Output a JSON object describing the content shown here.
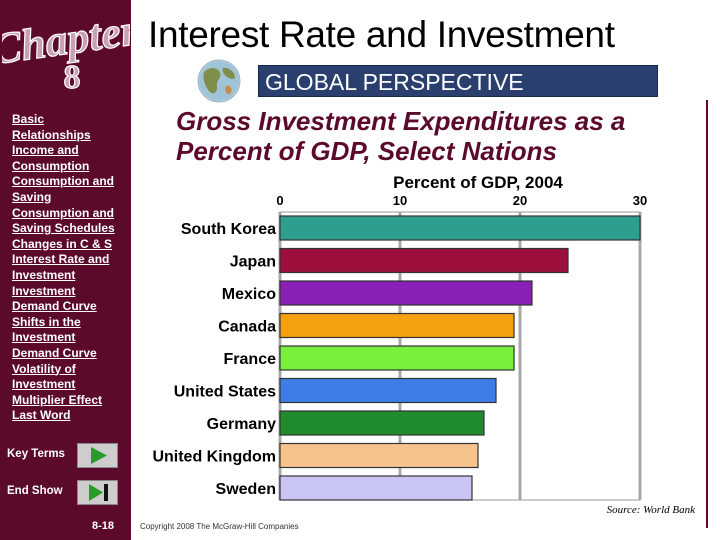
{
  "header": {
    "title": "Interest Rate and Investment",
    "banner": "GLOBAL PERSPECTIVE",
    "subtitle": "Gross Investment Expenditures as a Percent of GDP, Select Nations"
  },
  "sidebar": {
    "logo": {
      "word": "Chapter",
      "number": "8"
    },
    "links": [
      "Basic",
      "Relationships",
      "Income and",
      "Consumption",
      "Consumption and",
      "Saving",
      "Consumption and",
      "Saving Schedules",
      "Changes in C & S",
      "Interest Rate and",
      "Investment",
      "Investment",
      "Demand Curve",
      "Shifts in the",
      "Investment",
      "Demand Curve",
      "Volatility of",
      "Investment",
      "Multiplier Effect",
      "Last Word"
    ],
    "key_terms_label": "Key Terms",
    "end_show_label": "End Show",
    "page_number": "8-18"
  },
  "footer": {
    "source": "Source: World Bank",
    "copyright": "Copyright 2008 The McGraw-Hill Companies"
  },
  "colors": {
    "sidebar": "#5c0a2c",
    "banner": "#2a3f6e",
    "subtitle": "#5c0a2c"
  },
  "chart_data": {
    "type": "bar",
    "orientation": "horizontal",
    "title": "Percent of GDP, 2004",
    "xlabel": "Percent of GDP, 2004",
    "xlim": [
      0,
      30
    ],
    "ticks": [
      0,
      10,
      20,
      30
    ],
    "grid": true,
    "categories": [
      "South Korea",
      "Japan",
      "Mexico",
      "Canada",
      "France",
      "United States",
      "Germany",
      "United Kingdom",
      "Sweden"
    ],
    "values": [
      30,
      24,
      21,
      19.5,
      19.5,
      18,
      17,
      16.5,
      16
    ],
    "colors": [
      "#2e9e8e",
      "#9b0f3a",
      "#8a1fb5",
      "#f5a00f",
      "#78f03c",
      "#3c7de8",
      "#1f8a2e",
      "#f7c38c",
      "#c9c6f5"
    ]
  }
}
